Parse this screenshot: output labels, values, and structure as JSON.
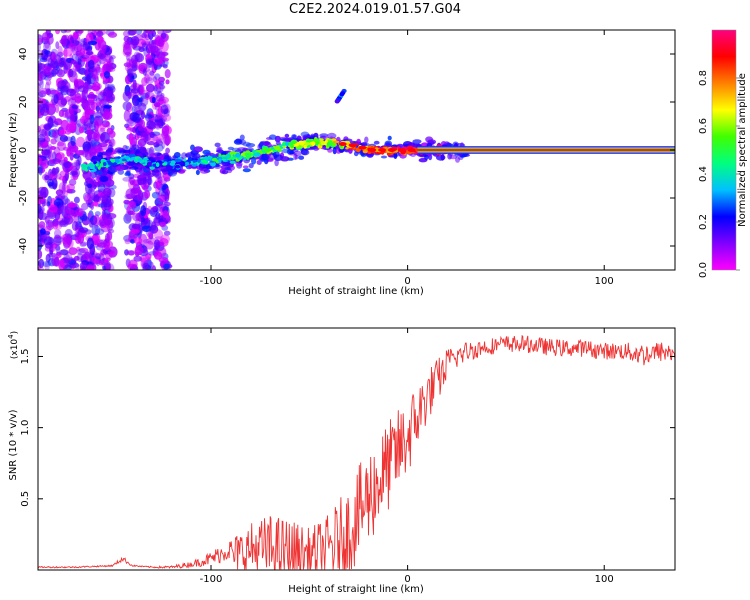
{
  "title": "C2E2.2024.019.01.57.G04",
  "colorbar": {
    "label": "Normalized spectral amplitude",
    "tick_labels": [
      "0.0",
      "0.2",
      "0.4",
      "0.6",
      "0.8"
    ],
    "tick_values": [
      0.0,
      0.2,
      0.4,
      0.6,
      0.8
    ],
    "range": [
      0,
      1
    ],
    "colors": [
      "#ff00ff",
      "#8000ff",
      "#0000ff",
      "#00c0ff",
      "#00ff80",
      "#40ff00",
      "#ffff00",
      "#ff8000",
      "#ff0000",
      "#ff0080"
    ]
  },
  "chart_data": [
    {
      "type": "heatmap",
      "title": "",
      "xlabel": "Height of straight line (km)",
      "ylabel": "Frequency (Hz)",
      "xlim": [
        -188,
        136
      ],
      "ylim": [
        -50,
        50
      ],
      "x_ticks": [
        -100,
        0,
        100
      ],
      "x_tick_labels": [
        "-100",
        "0",
        "100"
      ],
      "y_ticks": [
        -40,
        -20,
        0,
        20,
        40
      ],
      "y_tick_labels": [
        "-40",
        "-20",
        "0",
        "20",
        "40"
      ],
      "ridge": {
        "description": "Frequency ridge of the received signal vs height",
        "x": [
          -160,
          -150,
          -140,
          -130,
          -120,
          -110,
          -100,
          -90,
          -80,
          -70,
          -60,
          -50,
          -40,
          -30,
          -20,
          -10,
          0,
          10,
          136
        ],
        "y": [
          -7,
          -5,
          -3,
          -6,
          -6,
          -5,
          -4,
          -3,
          -2,
          0,
          2,
          3,
          3,
          2,
          0,
          0,
          0,
          0,
          0
        ],
        "amplitude": [
          0.35,
          0.35,
          0.4,
          0.3,
          0.3,
          0.35,
          0.4,
          0.45,
          0.5,
          0.5,
          0.5,
          0.55,
          0.6,
          0.7,
          0.8,
          0.85,
          0.9,
          0.95,
          0.95
        ]
      },
      "noise_regions_x": [
        [
          -188,
          -150
        ],
        [
          -143,
          -122
        ]
      ],
      "spur": {
        "x": [
          -36,
          -32
        ],
        "y": [
          20,
          25
        ]
      }
    },
    {
      "type": "line",
      "title": "",
      "xlabel": "Height of straight line (km)",
      "ylabel": "SNR (10 * v/v)",
      "y_scale_label": "(x10",
      "y_scale_exponent": "4",
      "y_scale_suffix": ")",
      "xlim": [
        -188,
        136
      ],
      "ylim": [
        0,
        1.7
      ],
      "x_ticks": [
        -100,
        0,
        100
      ],
      "x_tick_labels": [
        "-100",
        "0",
        "100"
      ],
      "y_ticks": [
        0.5,
        1.0,
        1.5
      ],
      "y_tick_labels": [
        "0.5",
        "1.0",
        "1.5"
      ],
      "series": [
        {
          "name": "SNR",
          "color": "#ee3333",
          "x": [
            -188,
            -170,
            -150,
            -145,
            -140,
            -130,
            -120,
            -110,
            -100,
            -90,
            -80,
            -70,
            -60,
            -50,
            -40,
            -30,
            -20,
            -10,
            0,
            10,
            20,
            30,
            40,
            50,
            60,
            70,
            80,
            90,
            100,
            110,
            120,
            130,
            136
          ],
          "y": [
            0.02,
            0.02,
            0.03,
            0.08,
            0.03,
            0.02,
            0.02,
            0.04,
            0.08,
            0.15,
            0.22,
            0.25,
            0.22,
            0.18,
            0.25,
            0.4,
            0.65,
            0.85,
            1.05,
            1.3,
            1.48,
            1.55,
            1.58,
            1.6,
            1.6,
            1.58,
            1.57,
            1.57,
            1.55,
            1.55,
            1.53,
            1.55,
            1.53
          ],
          "noise": [
            0.005,
            0.005,
            0.005,
            0.02,
            0.005,
            0.005,
            0.01,
            0.02,
            0.05,
            0.08,
            0.12,
            0.15,
            0.15,
            0.12,
            0.15,
            0.2,
            0.22,
            0.2,
            0.18,
            0.12,
            0.08,
            0.06,
            0.05,
            0.05,
            0.05,
            0.05,
            0.05,
            0.05,
            0.05,
            0.05,
            0.07,
            0.06,
            0.06
          ]
        }
      ]
    }
  ]
}
